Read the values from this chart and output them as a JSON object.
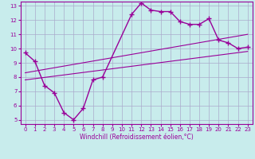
{
  "xlabel": "Windchill (Refroidissement éolien,°C)",
  "bg_color": "#c8ecec",
  "grid_color": "#aaaacc",
  "line_color": "#990099",
  "xlim": [
    -0.5,
    23.5
  ],
  "ylim": [
    4.7,
    13.3
  ],
  "xticks": [
    0,
    1,
    2,
    3,
    4,
    5,
    6,
    7,
    8,
    9,
    10,
    11,
    12,
    13,
    14,
    15,
    16,
    17,
    18,
    19,
    20,
    21,
    22,
    23
  ],
  "yticks": [
    5,
    6,
    7,
    8,
    9,
    10,
    11,
    12,
    13
  ],
  "line1_x": [
    0,
    1,
    2,
    3,
    4,
    5,
    6,
    7,
    8,
    11,
    12,
    13,
    14,
    15,
    16,
    17,
    18,
    19,
    20,
    21,
    22,
    23
  ],
  "line1_y": [
    9.7,
    9.1,
    7.4,
    6.9,
    5.5,
    5.0,
    5.8,
    7.8,
    8.0,
    12.4,
    13.2,
    12.7,
    12.6,
    12.6,
    11.9,
    11.7,
    11.7,
    12.1,
    10.6,
    10.4,
    10.0,
    10.1
  ],
  "line2_x": [
    0,
    23
  ],
  "line2_y": [
    7.8,
    9.8
  ],
  "line3_x": [
    0,
    23
  ],
  "line3_y": [
    8.3,
    11.0
  ]
}
